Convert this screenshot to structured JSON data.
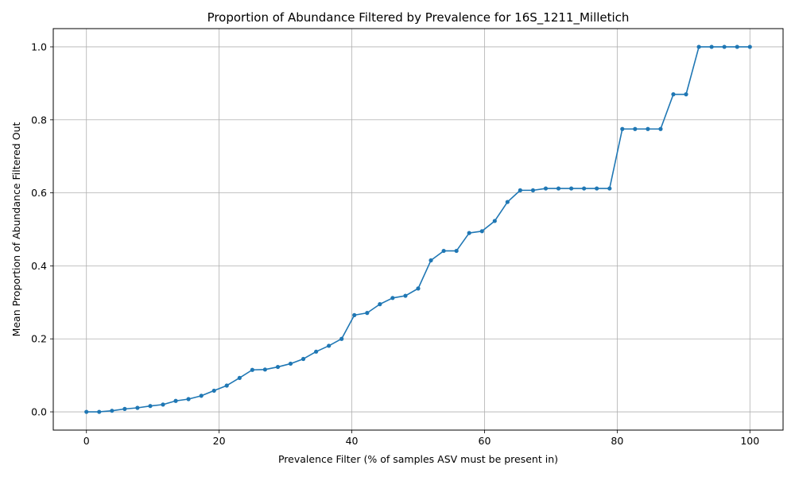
{
  "chart_data": {
    "type": "line",
    "title": "Proportion of Abundance Filtered by Prevalence for 16S_1211_Milletich",
    "xlabel": "Prevalence Filter (% of samples ASV must be present in)",
    "ylabel": "Mean Proportion of Abundance Filtered Out",
    "xlim": [
      -5,
      105
    ],
    "ylim": [
      -0.05,
      1.05
    ],
    "xticks": [
      "0",
      "20",
      "40",
      "60",
      "80",
      "100"
    ],
    "yticks": [
      "0.0",
      "0.2",
      "0.4",
      "0.6",
      "0.8",
      "1.0"
    ],
    "grid": true,
    "color": "#1f77b4",
    "x": [
      0,
      1.92,
      3.85,
      5.77,
      7.69,
      9.62,
      11.54,
      13.46,
      15.38,
      17.31,
      19.23,
      21.15,
      23.08,
      25,
      26.92,
      28.85,
      30.77,
      32.69,
      34.62,
      36.54,
      38.46,
      40.38,
      42.31,
      44.23,
      46.15,
      48.08,
      50,
      51.92,
      53.85,
      55.77,
      57.69,
      59.62,
      61.54,
      63.46,
      65.38,
      67.31,
      69.23,
      71.15,
      73.08,
      75,
      76.92,
      78.85,
      80.77,
      82.69,
      84.62,
      86.54,
      88.46,
      90.38,
      92.31,
      94.23,
      96.15,
      98.08,
      100
    ],
    "y": [
      0.0,
      0.0,
      0.003,
      0.008,
      0.011,
      0.016,
      0.02,
      0.03,
      0.035,
      0.044,
      0.058,
      0.072,
      0.093,
      0.115,
      0.116,
      0.123,
      0.132,
      0.145,
      0.165,
      0.181,
      0.2,
      0.265,
      0.271,
      0.295,
      0.312,
      0.318,
      0.338,
      0.415,
      0.441,
      0.441,
      0.49,
      0.495,
      0.523,
      0.575,
      0.607,
      0.607,
      0.612,
      0.612,
      0.612,
      0.612,
      0.612,
      0.612,
      0.775,
      0.775,
      0.775,
      0.775,
      0.87,
      0.87,
      1.0,
      1.0,
      1.0,
      1.0,
      1.0
    ]
  }
}
